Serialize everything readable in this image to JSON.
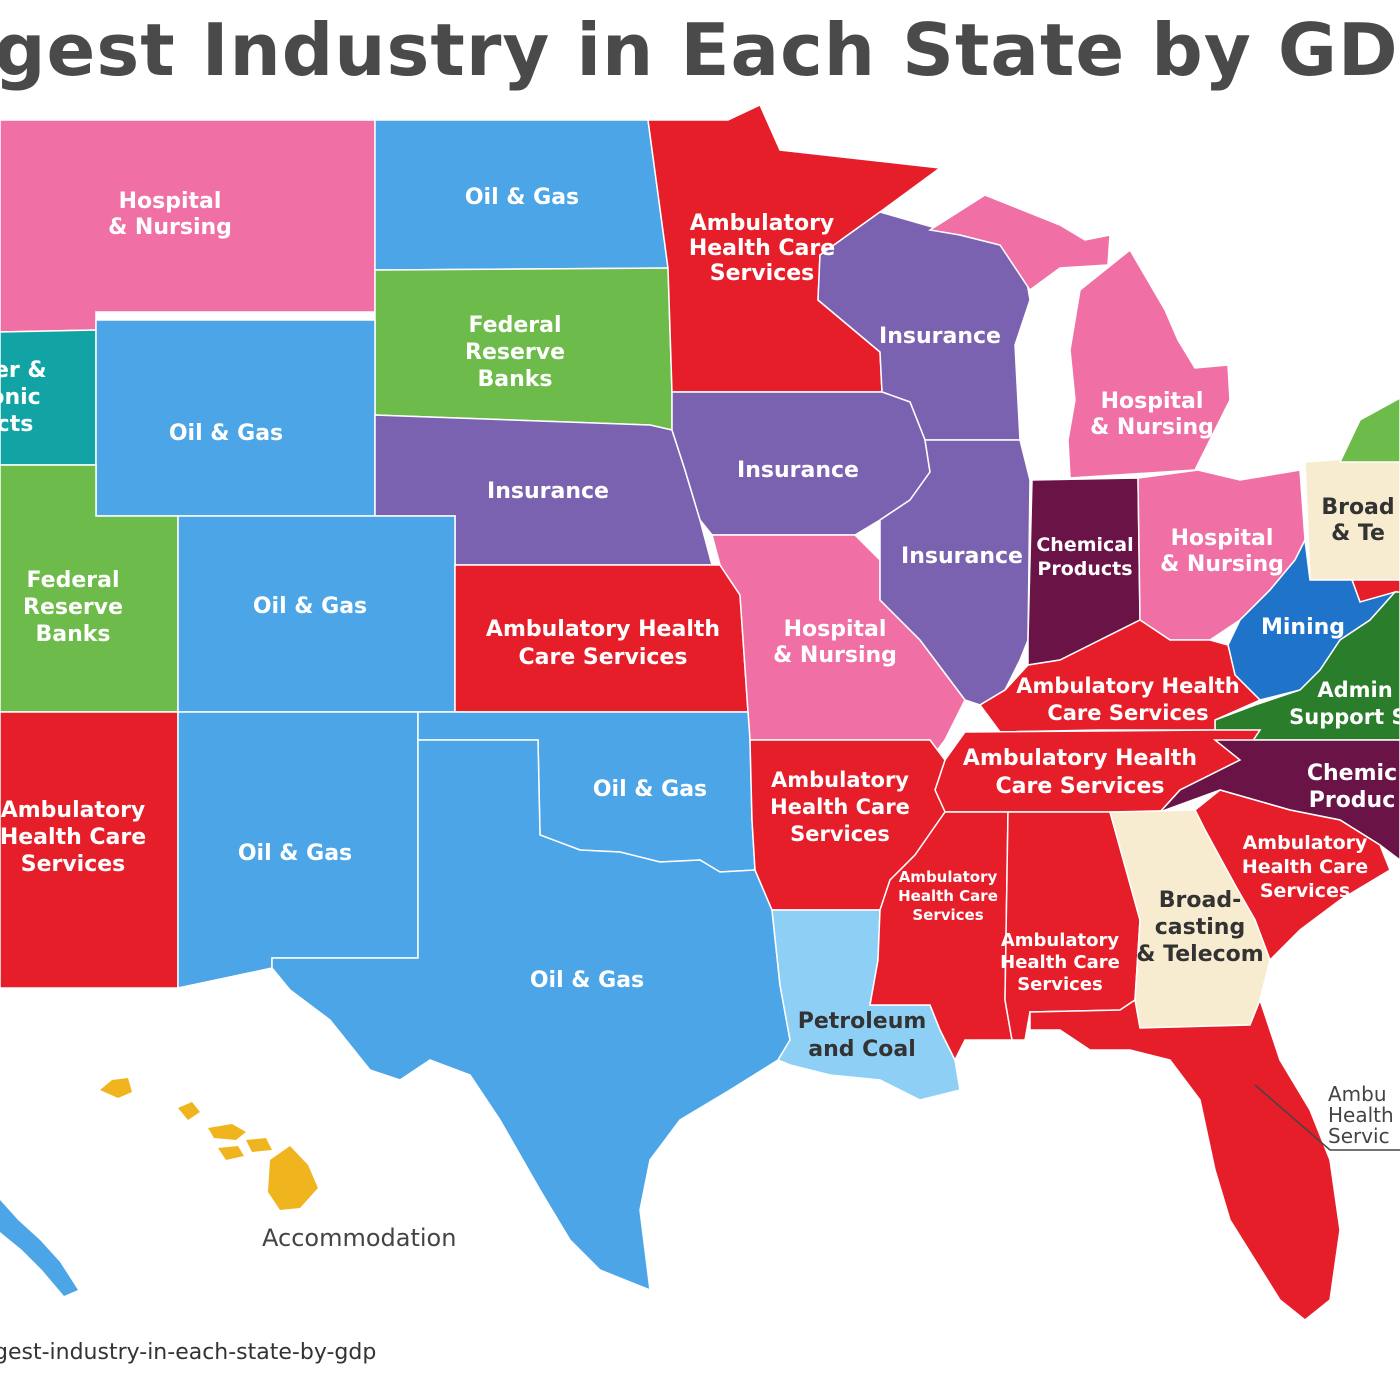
{
  "title": "gest Industry in Each State by GDP",
  "source": "gest-industry-in-each-state-by-gdp",
  "colors": {
    "hospital_nursing": "#f070a6",
    "oil_gas": "#4ca5e6",
    "federal_reserve": "#6dbb4a",
    "ambulatory": "#e61e2a",
    "insurance": "#7b62b0",
    "chemical_products": "#6a1347",
    "mining": "#1f74c9",
    "broadcasting": "#f7ecd0",
    "petroleum_coal": "#8ed0f5",
    "computer_electronic": "#12a3a5",
    "admin_support": "#2a7d2a",
    "accommodation": "#f0b51e"
  },
  "labels": {
    "montana": [
      "Hospital",
      "& Nursing"
    ],
    "north_dakota": [
      "Oil & Gas"
    ],
    "south_dakota": [
      "Federal",
      "Reserve",
      "Banks"
    ],
    "minnesota": [
      "Ambulatory",
      "Health Care",
      "Services"
    ],
    "wisconsin": [
      "Insurance"
    ],
    "michigan": [
      "Hospital",
      "& Nursing"
    ],
    "idaho": [
      "ter &",
      "onic",
      "cts"
    ],
    "wyoming": [
      "Oil & Gas"
    ],
    "nebraska": [
      "Insurance"
    ],
    "iowa": [
      "Insurance"
    ],
    "utah": [
      "Federal",
      "Reserve",
      "Banks"
    ],
    "colorado": [
      "Oil & Gas"
    ],
    "kansas": [
      "Ambulatory Health",
      "Care Services"
    ],
    "missouri": [
      "Hospital",
      "& Nursing"
    ],
    "illinois": [
      "Insurance"
    ],
    "indiana": [
      "Chemical",
      "Products"
    ],
    "ohio": [
      "Hospital",
      "& Nursing"
    ],
    "pennsylvania": [
      "Broad",
      "& Te"
    ],
    "west_virginia": [
      "Mining"
    ],
    "virginia": [
      "Admin",
      "Support Se"
    ],
    "kentucky": [
      "Ambulatory Health",
      "Care Services"
    ],
    "tennessee": [
      "Ambulatory Health",
      "Care Services"
    ],
    "north_carolina": [
      "Chemic",
      "Produc"
    ],
    "arizona": [
      "Ambulatory",
      "Health Care",
      "Services"
    ],
    "new_mexico": [
      "Oil & Gas"
    ],
    "oklahoma": [
      "Oil & Gas"
    ],
    "texas": [
      "Oil & Gas"
    ],
    "arkansas": [
      "Ambulatory",
      "Health Care",
      "Services"
    ],
    "mississippi": [
      "Ambulatory",
      "Health Care",
      "Services"
    ],
    "alabama": [
      "Ambulatory",
      "Health Care",
      "Services"
    ],
    "georgia": [
      "Broad-",
      "casting",
      "& Telecom"
    ],
    "south_carolina": [
      "Ambulatory",
      "Health Care",
      "Services"
    ],
    "louisiana": [
      "Petroleum",
      "and Coal"
    ],
    "florida": [
      "Ambu",
      "Health",
      "Servic"
    ],
    "hawaii": [
      "Accommodation"
    ]
  }
}
